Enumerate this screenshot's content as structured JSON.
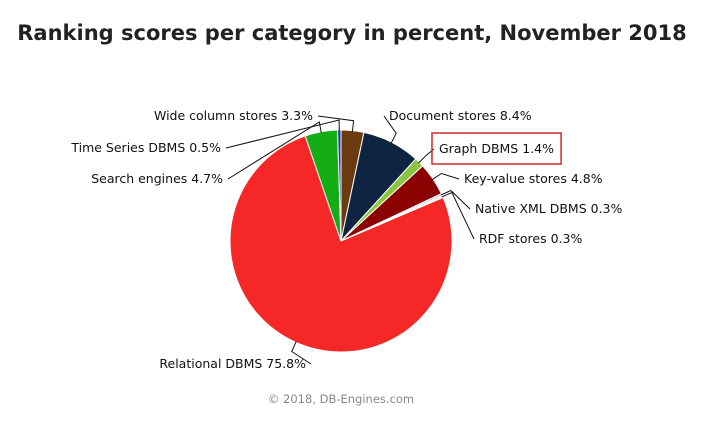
{
  "chart_data": {
    "type": "pie",
    "title": "Ranking scores per category in percent, November 2018",
    "categories": [
      "Wide column stores",
      "Document stores",
      "Graph DBMS",
      "Key-value stores",
      "Native XML DBMS",
      "RDF stores",
      "Relational DBMS",
      "Search engines",
      "Time Series DBMS"
    ],
    "values": [
      3.3,
      8.4,
      1.4,
      4.8,
      0.3,
      0.3,
      75.8,
      4.7,
      0.5
    ],
    "labels": [
      "Wide column stores 3.3%",
      "Document stores 8.4%",
      "Graph DBMS 1.4%",
      "Key-value stores 4.8%",
      "Native XML DBMS 0.3%",
      "RDF stores 0.3%",
      "Relational DBMS 75.8%",
      "Search engines 4.7%",
      "Time Series DBMS 0.5%"
    ],
    "colors": [
      "#6b3a0e",
      "#0e2440",
      "#8bc53f",
      "#8b0000",
      "#b6c4d6",
      "#e8e8e8",
      "#f52727",
      "#15ad15",
      "#233ea0"
    ],
    "highlighted": "Graph DBMS",
    "highlight_color": "#cc2a2a",
    "credit": "© 2018, DB-Engines.com"
  }
}
